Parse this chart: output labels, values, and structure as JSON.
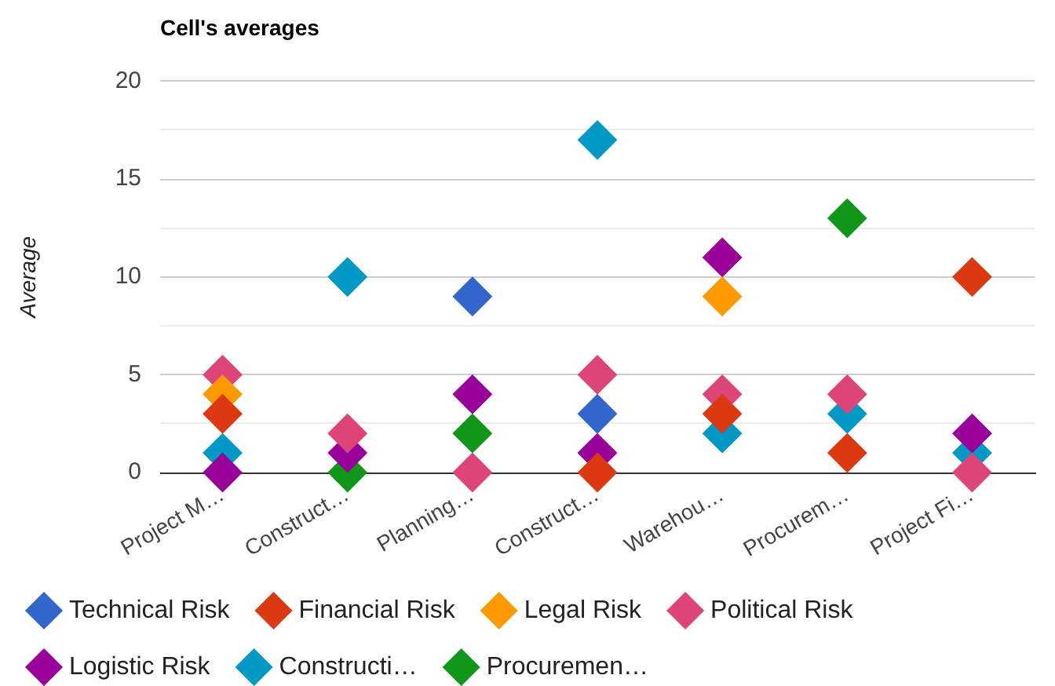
{
  "chart_data": {
    "type": "scatter",
    "title": "Cell's averages",
    "ylabel": "Average",
    "categories": [
      "Project M…",
      "Construct…",
      "Planning…",
      "Construct…",
      "Warehou…",
      "Procurem…",
      "Project Fi…"
    ],
    "series": [
      {
        "name": "Technical Risk",
        "color": "#3366cc",
        "values": [
          null,
          null,
          9,
          3,
          null,
          null,
          null
        ]
      },
      {
        "name": "Financial Risk",
        "color": "#dc3912",
        "values": [
          3,
          null,
          null,
          0,
          3,
          1,
          10
        ]
      },
      {
        "name": "Legal Risk",
        "color": "#ff9900",
        "values": [
          4,
          null,
          null,
          null,
          9,
          null,
          null
        ]
      },
      {
        "name": "Political Risk",
        "color": "#dd4477",
        "values": [
          5,
          2,
          0,
          5,
          4,
          4,
          0
        ]
      },
      {
        "name": "Logistic Risk",
        "color": "#990099",
        "values": [
          0,
          1,
          4,
          1,
          11,
          null,
          2
        ]
      },
      {
        "name": "Constructi…",
        "color": "#0099c6",
        "values": [
          1,
          10,
          null,
          17,
          2,
          3,
          1
        ]
      },
      {
        "name": "Procuremen…",
        "color": "#109618",
        "values": [
          null,
          0,
          2,
          null,
          null,
          13,
          null
        ]
      }
    ],
    "ylim": [
      0,
      20
    ],
    "yticks": [
      0,
      {
        "value": 2.5,
        "label": null
      },
      5,
      {
        "value": 7.5,
        "label": null
      },
      10,
      {
        "value": 12.5,
        "label": null
      },
      15,
      {
        "value": 17.5,
        "label": null
      },
      20
    ],
    "grid": "y",
    "legend": "bottom",
    "marker": "diamond"
  }
}
